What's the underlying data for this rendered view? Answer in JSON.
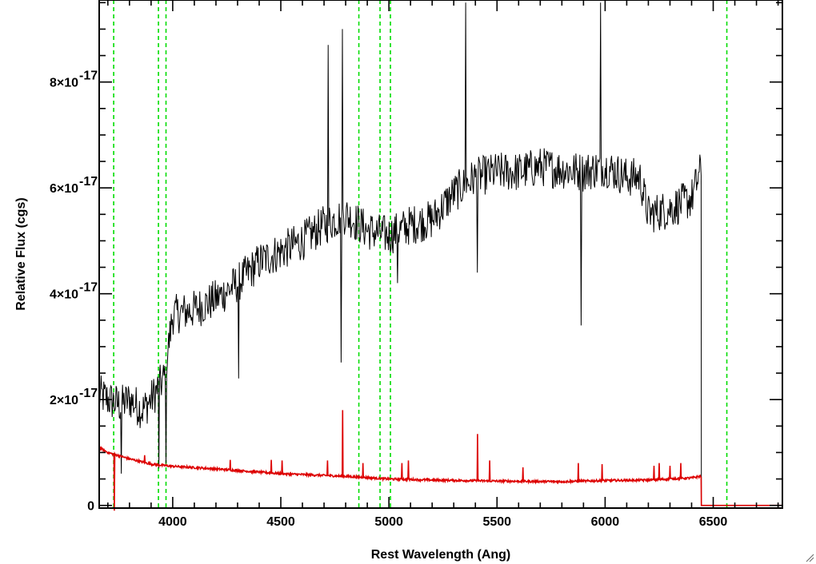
{
  "chart_data": {
    "type": "line",
    "xlabel": "Rest Wavelength (Ang)",
    "ylabel": "Relative Flux (cgs)",
    "xlim": [
      3660,
      6820
    ],
    "ylim": [
      -5e-19,
      9.55e-17
    ],
    "x_ticks": [
      {
        "value": 4000,
        "label": "4000"
      },
      {
        "value": 4500,
        "label": "4500"
      },
      {
        "value": 5000,
        "label": "5000"
      },
      {
        "value": 5500,
        "label": "5500"
      },
      {
        "value": 6000,
        "label": "6000"
      },
      {
        "value": 6500,
        "label": "6500"
      }
    ],
    "y_ticks": [
      {
        "value": 0,
        "mantissa": "0",
        "exponent": ""
      },
      {
        "value": 2e-17,
        "mantissa": "2×10",
        "exponent": "-17"
      },
      {
        "value": 4e-17,
        "mantissa": "4×10",
        "exponent": "-17"
      },
      {
        "value": 6e-17,
        "mantissa": "6×10",
        "exponent": "-17"
      },
      {
        "value": 8e-17,
        "mantissa": "8×10",
        "exponent": "-17"
      }
    ],
    "x_minor_step": 100,
    "y_minor_step": 5e-18,
    "reference_lines": {
      "color": "#00dd00",
      "style": "dashed",
      "x": [
        3727,
        3934,
        3969,
        4861,
        4959,
        5007,
        6563
      ]
    },
    "series": [
      {
        "color": "#000000",
        "x_range": [
          3660,
          6445
        ],
        "continuum": {
          "x": [
            3660,
            3700,
            3760,
            3800,
            3860,
            3900,
            3960,
            4000,
            4100,
            4200,
            4300,
            4400,
            4500,
            4600,
            4700,
            4800,
            4900,
            5000,
            5100,
            5200,
            5300,
            5400,
            5500,
            5600,
            5700,
            5800,
            5900,
            6000,
            6100,
            6160,
            6200,
            6300,
            6400,
            6440
          ],
          "y": [
            2.1e-17,
            2e-17,
            1.9e-17,
            2e-17,
            1.8e-17,
            2e-17,
            2.4e-17,
            3.6e-17,
            3.7e-17,
            3.9e-17,
            4.2e-17,
            4.6e-17,
            4.8e-17,
            5e-17,
            5.3e-17,
            5.5e-17,
            5.2e-17,
            5.1e-17,
            5.3e-17,
            5.4e-17,
            5.9e-17,
            6.2e-17,
            6.3e-17,
            6.3e-17,
            6.4e-17,
            6.35e-17,
            6.3e-17,
            6.4e-17,
            6.2e-17,
            6.2e-17,
            5.5e-17,
            5.6e-17,
            5.8e-17,
            6.3e-17
          ]
        },
        "noise_amplitude": 3.8e-18,
        "features": [
          {
            "x": 3762,
            "y": 6e-18
          },
          {
            "x": 3935,
            "y": 7e-18
          },
          {
            "x": 3970,
            "y": 8e-18
          },
          {
            "x": 4305,
            "y": 2.4e-17
          },
          {
            "x": 4720,
            "y": 8.7e-17
          },
          {
            "x": 4780,
            "y": 2.7e-17
          },
          {
            "x": 4785,
            "y": 9e-17
          },
          {
            "x": 5040,
            "y": 4.2e-17
          },
          {
            "x": 5355,
            "y": 9.5e-17
          },
          {
            "x": 5410,
            "y": 4.4e-17
          },
          {
            "x": 5890,
            "y": 3.4e-17
          },
          {
            "x": 5978,
            "y": 9.5e-17
          }
        ],
        "end": {
          "x": 6445,
          "y": 0
        }
      },
      {
        "color": "#dd0000",
        "continuum": {
          "x": [
            3660,
            3700,
            3800,
            3900,
            4000,
            4200,
            4500,
            4800,
            5000,
            5200,
            5500,
            5800,
            6000,
            6200,
            6400,
            6440
          ],
          "y": [
            1.1e-17,
            1e-17,
            8.8e-18,
            7.8e-18,
            7.4e-18,
            6.9e-18,
            6e-18,
            5.5e-18,
            5e-18,
            4.8e-18,
            4.6e-18,
            4.5e-18,
            4.7e-18,
            4.8e-18,
            5.2e-18,
            5.5e-18
          ]
        },
        "lines": [
          {
            "x": 3730,
            "y": -1e-18
          },
          {
            "x": 3870,
            "y": 9.5e-18
          },
          {
            "x": 4265,
            "y": 8.6e-18
          },
          {
            "x": 4455,
            "y": 8.6e-18
          },
          {
            "x": 4505,
            "y": 8.5e-18
          },
          {
            "x": 4715,
            "y": 8.5e-18
          },
          {
            "x": 4785,
            "y": 1.8e-17
          },
          {
            "x": 4880,
            "y": 8e-18
          },
          {
            "x": 5060,
            "y": 8e-18
          },
          {
            "x": 5090,
            "y": 8.5e-18
          },
          {
            "x": 5410,
            "y": 1.35e-17
          },
          {
            "x": 5465,
            "y": 8.5e-18
          },
          {
            "x": 5620,
            "y": 7.2e-18
          },
          {
            "x": 5875,
            "y": 8e-18
          },
          {
            "x": 5985,
            "y": 7.8e-18
          },
          {
            "x": 6225,
            "y": 7.5e-18
          },
          {
            "x": 6250,
            "y": 8e-18
          },
          {
            "x": 6300,
            "y": 7.5e-18
          },
          {
            "x": 6350,
            "y": 8e-18
          }
        ],
        "end": {
          "x": 6445,
          "y": 0
        }
      }
    ]
  }
}
